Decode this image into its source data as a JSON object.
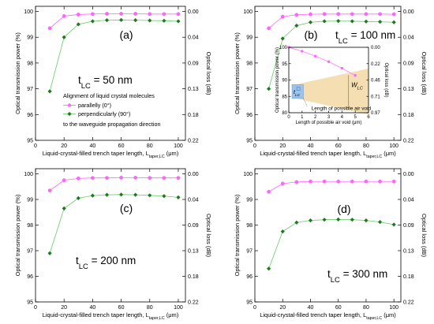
{
  "chart_data": [
    {
      "panel_label": "(a)",
      "type": "line",
      "t_label": "t",
      "t_sub": "LC",
      "t_value": " = 50 nm",
      "xlabel": "Liquid-crystal-filled trench taper length, L",
      "xlabel_sub": "taper,LC",
      "xlabel_unit": " (μm)",
      "ylabel": "Optical transmission power (%)",
      "ylabel_right": "Optical loss (dB)",
      "xlim": [
        0,
        105
      ],
      "ylim": [
        95,
        100.2
      ],
      "x_ticks": [
        0,
        20,
        40,
        60,
        80,
        100
      ],
      "y_ticks": [
        95,
        96,
        97,
        98,
        99,
        100
      ],
      "right_ticks": [
        {
          "value": 100,
          "label": "0.00"
        },
        {
          "value": 99,
          "label": "0.04"
        },
        {
          "value": 98,
          "label": "0.09"
        },
        {
          "value": 97,
          "label": "0.13"
        },
        {
          "value": 96,
          "label": "0.18"
        },
        {
          "value": 95,
          "label": "0.22"
        }
      ],
      "x": [
        10,
        20,
        30,
        40,
        50,
        60,
        70,
        80,
        90,
        100
      ],
      "series": [
        {
          "name": "parallelly (0°)",
          "marker": "circle",
          "color": "#ff66ff",
          "values": [
            99.35,
            99.82,
            99.88,
            99.9,
            99.91,
            99.91,
            99.91,
            99.9,
            99.9,
            99.9
          ]
        },
        {
          "name": "perpendicularly (90°)",
          "marker": "diamond",
          "color": "#1f7a1f",
          "line_color": "#66cc66",
          "values": [
            96.9,
            99.0,
            99.5,
            99.62,
            99.66,
            99.67,
            99.66,
            99.65,
            99.64,
            99.62
          ]
        }
      ],
      "legend": {
        "title": "Alignment of liquid crystal molecules",
        "footer": "to the waveguide propagation direction"
      }
    },
    {
      "panel_label": "(b)",
      "type": "line",
      "t_label": "t",
      "t_sub": "LC",
      "t_value": " = 100 nm",
      "xlabel": "Liquid-crystal-filled trench taper length, L",
      "xlabel_sub": "taper,LC",
      "xlabel_unit": " (μm)",
      "ylabel": "Optical transmission power (%)",
      "ylabel_right": "Optical loss (dB)",
      "xlim": [
        0,
        105
      ],
      "ylim": [
        95,
        100.2
      ],
      "x_ticks": [
        0,
        20,
        40,
        60,
        80,
        100
      ],
      "y_ticks": [
        95,
        96,
        97,
        98,
        99,
        100
      ],
      "right_ticks": [
        {
          "value": 100,
          "label": "0.00"
        },
        {
          "value": 99,
          "label": "0.04"
        },
        {
          "value": 98,
          "label": "0.09"
        },
        {
          "value": 97,
          "label": "0.13"
        },
        {
          "value": 96,
          "label": "0.18"
        },
        {
          "value": 95,
          "label": "0.22"
        }
      ],
      "x": [
        10,
        20,
        30,
        40,
        50,
        60,
        70,
        80,
        90,
        100
      ],
      "series": [
        {
          "name": "parallelly (0°)",
          "marker": "circle",
          "color": "#ff66ff",
          "values": [
            99.35,
            99.8,
            99.87,
            99.89,
            99.9,
            99.9,
            99.9,
            99.9,
            99.9,
            99.89
          ]
        },
        {
          "name": "perpendicularly (90°)",
          "marker": "diamond",
          "color": "#1f7a1f",
          "line_color": "#66cc66",
          "values": [
            97.0,
            98.95,
            99.45,
            99.58,
            99.62,
            99.63,
            99.62,
            99.61,
            99.6,
            99.58
          ]
        }
      ],
      "inset": {
        "xlabel": "Length of possible air void (μm)",
        "ylabel": "Optical transmission power (%)",
        "ylabel_right": "Optical loss (dB)",
        "xlim": [
          0,
          6
        ],
        "ylim": [
          80,
          100
        ],
        "x_ticks": [
          0,
          1,
          2,
          3,
          4,
          5,
          6
        ],
        "y_ticks": [
          80,
          85,
          90,
          95,
          100
        ],
        "right_ticks": [
          {
            "value": 100,
            "label": "0.00"
          },
          {
            "value": 95,
            "label": "0.22"
          },
          {
            "value": 90,
            "label": "0.46"
          },
          {
            "value": 85,
            "label": "0.71"
          },
          {
            "value": 80,
            "label": "0.97"
          }
        ],
        "x": [
          0,
          1,
          2,
          3,
          4,
          5
        ],
        "values": [
          100,
          98.8,
          97.3,
          95.6,
          93.6,
          91.4
        ],
        "labels": {
          "t": "t",
          "t_sub": "LC",
          "w": "W",
          "w_sub": "LC",
          "void": "Length of possible air void"
        }
      }
    },
    {
      "panel_label": "(c)",
      "type": "line",
      "t_label": "t",
      "t_sub": "LC",
      "t_value": " = 200 nm",
      "xlabel": "Liquid-crystal-filled trench taper length, L",
      "xlabel_sub": "taper,LC",
      "xlabel_unit": " (μm)",
      "ylabel": "Optical transmission power (%)",
      "ylabel_right": "Optical loss (dB)",
      "xlim": [
        0,
        105
      ],
      "ylim": [
        95,
        100.2
      ],
      "x_ticks": [
        0,
        20,
        40,
        60,
        80,
        100
      ],
      "y_ticks": [
        95,
        96,
        97,
        98,
        99,
        100
      ],
      "right_ticks": [
        {
          "value": 100,
          "label": "0.00"
        },
        {
          "value": 99,
          "label": "0.04"
        },
        {
          "value": 98,
          "label": "0.09"
        },
        {
          "value": 97,
          "label": "0.13"
        },
        {
          "value": 96,
          "label": "0.18"
        },
        {
          "value": 95,
          "label": "0.22"
        }
      ],
      "x": [
        10,
        20,
        30,
        40,
        50,
        60,
        70,
        80,
        90,
        100
      ],
      "series": [
        {
          "name": "parallelly (0°)",
          "marker": "circle",
          "color": "#ff66ff",
          "values": [
            99.35,
            99.75,
            99.82,
            99.84,
            99.84,
            99.85,
            99.85,
            99.84,
            99.84,
            99.84
          ]
        },
        {
          "name": "perpendicularly (90°)",
          "marker": "diamond",
          "color": "#1f7a1f",
          "line_color": "#66cc66",
          "values": [
            96.9,
            98.65,
            99.05,
            99.15,
            99.18,
            99.19,
            99.18,
            99.16,
            99.13,
            99.08
          ]
        }
      ]
    },
    {
      "panel_label": "(d)",
      "type": "line",
      "t_label": "t",
      "t_sub": "LC",
      "t_value": " = 300 nm",
      "xlabel": "Liquid-crystal-filled trench taper length, L",
      "xlabel_sub": "taper,LC",
      "xlabel_unit": " (μm)",
      "ylabel": "Optical transmission power (%)",
      "ylabel_right": "Optical loss (dB)",
      "xlim": [
        0,
        105
      ],
      "ylim": [
        95,
        100.2
      ],
      "x_ticks": [
        0,
        20,
        40,
        60,
        80,
        100
      ],
      "y_ticks": [
        95,
        96,
        97,
        98,
        99,
        100
      ],
      "right_ticks": [
        {
          "value": 100,
          "label": "0.00"
        },
        {
          "value": 99,
          "label": "0.04"
        },
        {
          "value": 98,
          "label": "0.09"
        },
        {
          "value": 97,
          "label": "0.13"
        },
        {
          "value": 96,
          "label": "0.18"
        },
        {
          "value": 95,
          "label": "0.22"
        }
      ],
      "x": [
        10,
        20,
        30,
        40,
        50,
        60,
        70,
        80,
        90,
        100
      ],
      "series": [
        {
          "name": "parallelly (0°)",
          "marker": "circle",
          "color": "#ff66ff",
          "values": [
            99.3,
            99.62,
            99.68,
            99.7,
            99.7,
            99.7,
            99.7,
            99.7,
            99.7,
            99.7
          ]
        },
        {
          "name": "perpendicularly (90°)",
          "marker": "diamond",
          "color": "#1f7a1f",
          "line_color": "#66cc66",
          "values": [
            96.3,
            97.75,
            98.1,
            98.18,
            98.21,
            98.22,
            98.21,
            98.18,
            98.12,
            98.02
          ]
        }
      ]
    }
  ]
}
